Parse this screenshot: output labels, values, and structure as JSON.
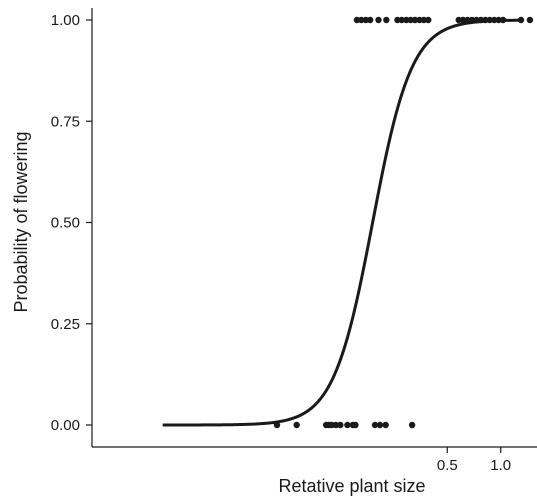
{
  "chart_data": {
    "type": "scatter",
    "title": "",
    "xlabel": "Retative plant size",
    "ylabel": "Probability of flowering",
    "x_scale": "log",
    "xlim": [
      0.005,
      1.6
    ],
    "ylim": [
      0,
      1
    ],
    "x_ticks": [
      {
        "value": 0.5,
        "label": "0.5"
      },
      {
        "value": 1.0,
        "label": "1.0"
      }
    ],
    "y_ticks": [
      {
        "value": 0.0,
        "label": "0.00"
      },
      {
        "value": 0.25,
        "label": "0.25"
      },
      {
        "value": 0.5,
        "label": "0.50"
      },
      {
        "value": 0.75,
        "label": "0.75"
      },
      {
        "value": 1.0,
        "label": "1.00"
      }
    ],
    "grid": false,
    "legend": "none",
    "points": [
      {
        "x": 0.055,
        "y": 0
      },
      {
        "x": 0.071,
        "y": 0
      },
      {
        "x": 0.104,
        "y": 0
      },
      {
        "x": 0.108,
        "y": 0
      },
      {
        "x": 0.112,
        "y": 0
      },
      {
        "x": 0.118,
        "y": 0
      },
      {
        "x": 0.125,
        "y": 0
      },
      {
        "x": 0.137,
        "y": 0
      },
      {
        "x": 0.147,
        "y": 0
      },
      {
        "x": 0.152,
        "y": 0
      },
      {
        "x": 0.196,
        "y": 0
      },
      {
        "x": 0.209,
        "y": 0
      },
      {
        "x": 0.225,
        "y": 0
      },
      {
        "x": 0.317,
        "y": 0
      },
      {
        "x": 0.155,
        "y": 1
      },
      {
        "x": 0.164,
        "y": 1
      },
      {
        "x": 0.174,
        "y": 1
      },
      {
        "x": 0.184,
        "y": 1
      },
      {
        "x": 0.205,
        "y": 1
      },
      {
        "x": 0.227,
        "y": 1
      },
      {
        "x": 0.262,
        "y": 1
      },
      {
        "x": 0.277,
        "y": 1
      },
      {
        "x": 0.294,
        "y": 1
      },
      {
        "x": 0.311,
        "y": 1
      },
      {
        "x": 0.329,
        "y": 1
      },
      {
        "x": 0.349,
        "y": 1
      },
      {
        "x": 0.369,
        "y": 1
      },
      {
        "x": 0.391,
        "y": 1
      },
      {
        "x": 0.58,
        "y": 1
      },
      {
        "x": 0.614,
        "y": 1
      },
      {
        "x": 0.65,
        "y": 1
      },
      {
        "x": 0.689,
        "y": 1
      },
      {
        "x": 0.73,
        "y": 1
      },
      {
        "x": 0.773,
        "y": 1
      },
      {
        "x": 0.819,
        "y": 1
      },
      {
        "x": 0.867,
        "y": 1
      },
      {
        "x": 0.919,
        "y": 1
      },
      {
        "x": 0.973,
        "y": 1
      },
      {
        "x": 1.031,
        "y": 1
      },
      {
        "x": 1.3,
        "y": 1
      },
      {
        "x": 1.46,
        "y": 1
      }
    ],
    "fit_curve": {
      "type": "logistic",
      "midpoint_x": 0.19,
      "slope_per_log10": 9.1,
      "x_range": [
        0.0125,
        1.3
      ]
    }
  }
}
